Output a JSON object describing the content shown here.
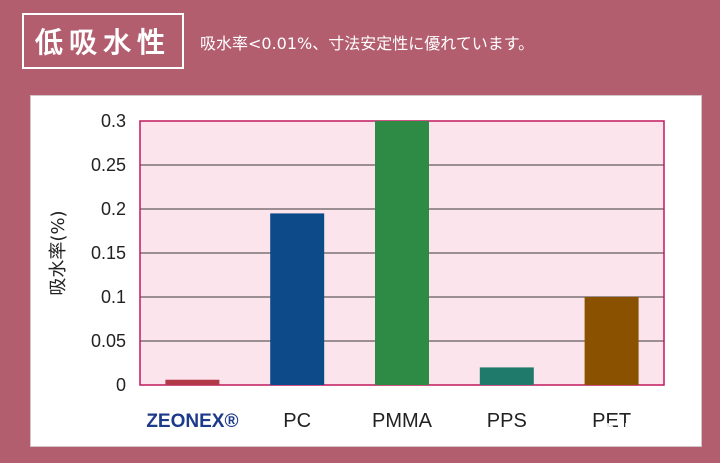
{
  "header": {
    "title": "低吸水性",
    "subtitle": "吸水率<0.01%、寸法安定性に優れています。"
  },
  "watermark": {
    "text": "化工孵化",
    "icon": "wechat-icon"
  },
  "colors": {
    "background": "#b25e6e",
    "plot_bg": "#fce4ec",
    "plot_border": "#c2185b"
  },
  "chart_data": {
    "type": "bar",
    "ylabel": "吸水率(%)",
    "xlabel": "",
    "ylim": [
      0,
      0.3
    ],
    "yticks": [
      0,
      0.05,
      0.1,
      0.15,
      0.2,
      0.25,
      0.3
    ],
    "ytick_labels": [
      "0",
      "0.05",
      "0.1",
      "0.15",
      "0.2",
      "0.25",
      "0.3"
    ],
    "categories": [
      "ZEONEX®",
      "PC",
      "PMMA",
      "PPS",
      "PET"
    ],
    "values": [
      0.006,
      0.195,
      0.3,
      0.02,
      0.1
    ],
    "bar_colors": [
      "#b23a48",
      "#0c4a8a",
      "#2e8b45",
      "#1f7a6c",
      "#8a5200"
    ],
    "category_colors": [
      "#1e3a8a",
      "#222222",
      "#222222",
      "#222222",
      "#222222"
    ],
    "grid": true
  }
}
